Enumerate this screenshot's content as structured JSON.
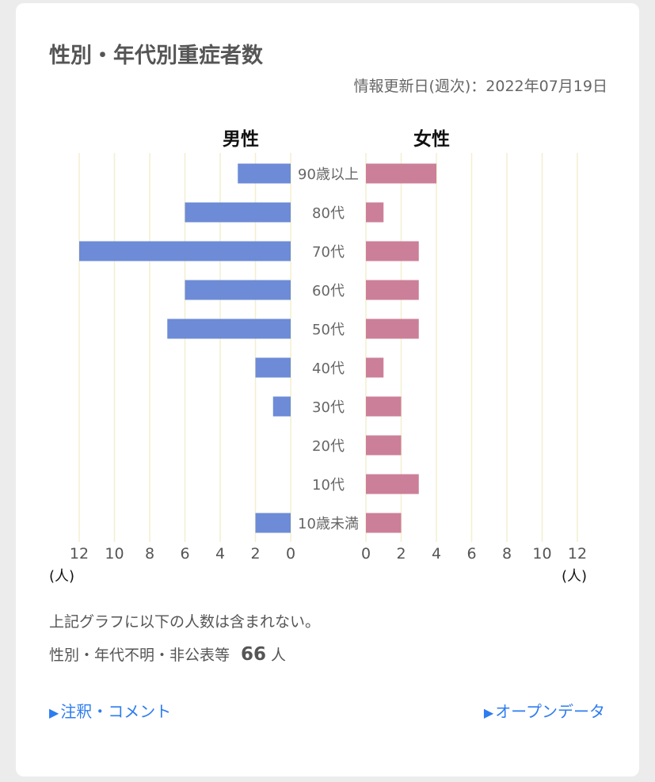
{
  "title": "性別・年代別重症者数",
  "updated": "情報更新日(週次)：2022年07月19日",
  "note_line1": "上記グラフに以下の人数は含まれない。",
  "note_line2_prefix": "性別・年代不明・非公表等",
  "note_count": "66",
  "note_unit": "人",
  "links": {
    "notes": "注釈・コメント",
    "open_data": "オープンデータ",
    "arrow": "▶"
  },
  "colors": {
    "male": "#6d8bd6",
    "female": "#cc7f98",
    "grid": "#f3efcf",
    "link": "#2d7cf0"
  },
  "chart_data": {
    "type": "bar",
    "orientation": "horizontal-pyramid",
    "categories": [
      "90歳以上",
      "80代",
      "70代",
      "60代",
      "50代",
      "40代",
      "30代",
      "20代",
      "10代",
      "10歳未満"
    ],
    "series": [
      {
        "name": "男性",
        "values": [
          3,
          6,
          12,
          6,
          7,
          2,
          1,
          0,
          0,
          2
        ]
      },
      {
        "name": "女性",
        "values": [
          4,
          1,
          3,
          3,
          3,
          1,
          2,
          2,
          3,
          2
        ]
      }
    ],
    "xlim": [
      0,
      12
    ],
    "ticks": [
      "0",
      "2",
      "4",
      "6",
      "8",
      "10",
      "12"
    ],
    "unit_label": "(人)",
    "grid": true
  }
}
